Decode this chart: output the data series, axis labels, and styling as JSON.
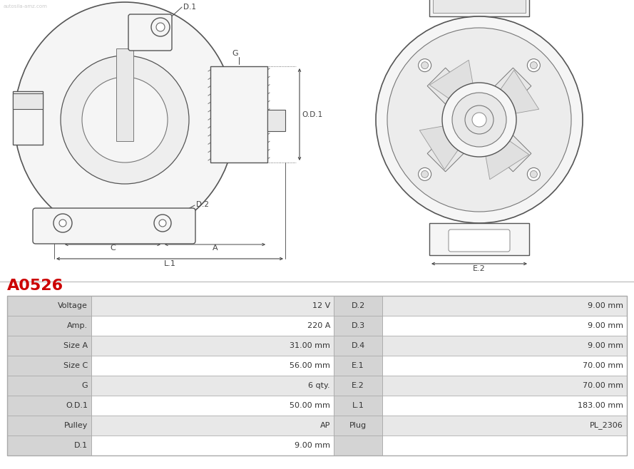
{
  "title": "A0526",
  "title_color": "#cc0000",
  "bg_color": "#ffffff",
  "table_header_bg": "#d4d4d4",
  "table_row_bg1": "#ffffff",
  "table_row_bg2": "#e8e8e8",
  "table_border_color": "#aaaaaa",
  "table_text_color": "#333333",
  "left_col": [
    "Voltage",
    "Amp.",
    "Size A",
    "Size C",
    "G",
    "O.D.1",
    "Pulley",
    "D.1"
  ],
  "left_val": [
    "12 V",
    "220 A",
    "31.00 mm",
    "56.00 mm",
    "6 qty.",
    "50.00 mm",
    "AP",
    "9.00 mm"
  ],
  "mid_col": [
    "D.2",
    "D.3",
    "D.4",
    "E.1",
    "E.2",
    "L.1",
    "Plug",
    ""
  ],
  "mid_val": [
    "9.00 mm",
    "9.00 mm",
    "9.00 mm",
    "70.00 mm",
    "70.00 mm",
    "183.00 mm",
    "PL_2306",
    ""
  ],
  "line_color": "#555555",
  "dim_color": "#444444",
  "fill_light": "#f5f5f5",
  "fill_mid": "#e8e8e8",
  "fill_dark": "#d0d0d0"
}
